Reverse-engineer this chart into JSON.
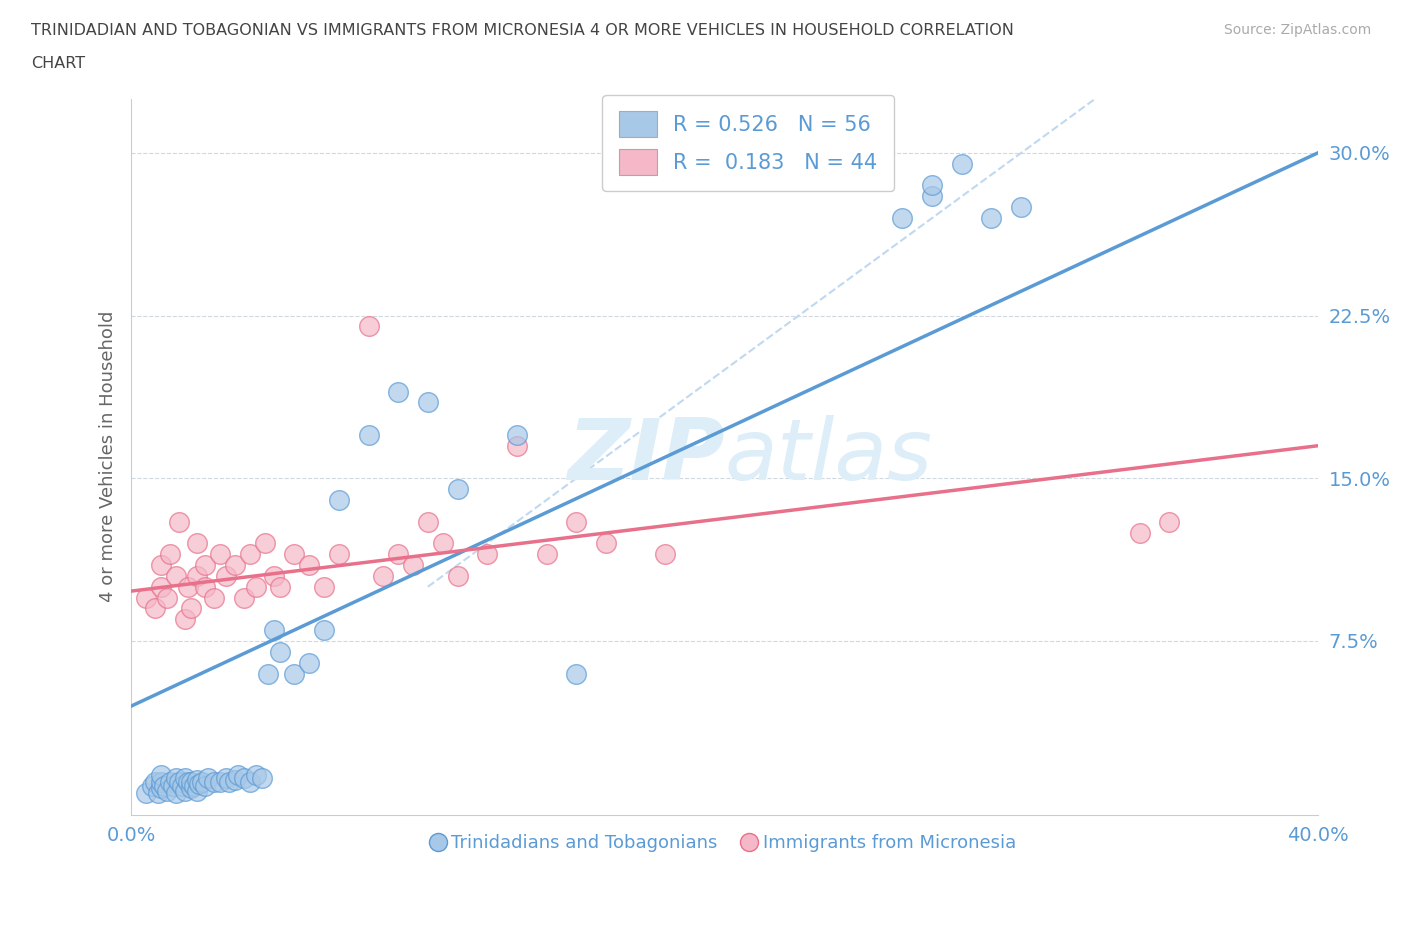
{
  "title_line1": "TRINIDADIAN AND TOBAGONIAN VS IMMIGRANTS FROM MICRONESIA 4 OR MORE VEHICLES IN HOUSEHOLD CORRELATION",
  "title_line2": "CHART",
  "source_text": "Source: ZipAtlas.com",
  "ylabel": "4 or more Vehicles in Household",
  "yticks": [
    "7.5%",
    "15.0%",
    "22.5%",
    "30.0%"
  ],
  "ytick_vals": [
    0.075,
    0.15,
    0.225,
    0.3
  ],
  "xlim": [
    0.0,
    0.4
  ],
  "ylim": [
    -0.005,
    0.325
  ],
  "legend_label1": "R = 0.526   N = 56",
  "legend_label2": "R =  0.183   N = 44",
  "legend_label_bottom1": "Trinidadians and Tobagonians",
  "legend_label_bottom2": "Immigrants from Micronesia",
  "color_blue": "#a8c8e8",
  "color_pink": "#f4b8c8",
  "color_blue_line": "#5b9bd5",
  "color_pink_line": "#e8708a",
  "color_diag": "#c0d8f0",
  "watermark_color": "#ddeef8",
  "blue_x": [
    0.005,
    0.007,
    0.008,
    0.009,
    0.01,
    0.01,
    0.01,
    0.011,
    0.012,
    0.013,
    0.014,
    0.015,
    0.015,
    0.016,
    0.017,
    0.018,
    0.018,
    0.019,
    0.02,
    0.02,
    0.021,
    0.022,
    0.022,
    0.023,
    0.024,
    0.025,
    0.026,
    0.028,
    0.03,
    0.032,
    0.033,
    0.035,
    0.036,
    0.038,
    0.04,
    0.042,
    0.044,
    0.046,
    0.048,
    0.05,
    0.055,
    0.06,
    0.065,
    0.07,
    0.08,
    0.09,
    0.1,
    0.11,
    0.13,
    0.15,
    0.26,
    0.27,
    0.27,
    0.28,
    0.29,
    0.3
  ],
  "blue_y": [
    0.005,
    0.008,
    0.01,
    0.005,
    0.007,
    0.01,
    0.013,
    0.008,
    0.006,
    0.01,
    0.008,
    0.005,
    0.012,
    0.01,
    0.008,
    0.006,
    0.012,
    0.01,
    0.007,
    0.01,
    0.008,
    0.006,
    0.011,
    0.009,
    0.01,
    0.008,
    0.012,
    0.01,
    0.01,
    0.012,
    0.01,
    0.011,
    0.013,
    0.012,
    0.01,
    0.013,
    0.012,
    0.06,
    0.08,
    0.07,
    0.06,
    0.065,
    0.08,
    0.14,
    0.17,
    0.19,
    0.185,
    0.145,
    0.17,
    0.06,
    0.27,
    0.28,
    0.285,
    0.295,
    0.27,
    0.275
  ],
  "pink_x": [
    0.005,
    0.008,
    0.01,
    0.01,
    0.012,
    0.013,
    0.015,
    0.016,
    0.018,
    0.019,
    0.02,
    0.022,
    0.022,
    0.025,
    0.025,
    0.028,
    0.03,
    0.032,
    0.035,
    0.038,
    0.04,
    0.042,
    0.045,
    0.048,
    0.05,
    0.055,
    0.06,
    0.065,
    0.07,
    0.08,
    0.085,
    0.09,
    0.095,
    0.1,
    0.105,
    0.11,
    0.12,
    0.13,
    0.14,
    0.15,
    0.16,
    0.18,
    0.34,
    0.35
  ],
  "pink_y": [
    0.095,
    0.09,
    0.11,
    0.1,
    0.095,
    0.115,
    0.105,
    0.13,
    0.085,
    0.1,
    0.09,
    0.105,
    0.12,
    0.1,
    0.11,
    0.095,
    0.115,
    0.105,
    0.11,
    0.095,
    0.115,
    0.1,
    0.12,
    0.105,
    0.1,
    0.115,
    0.11,
    0.1,
    0.115,
    0.22,
    0.105,
    0.115,
    0.11,
    0.13,
    0.12,
    0.105,
    0.115,
    0.165,
    0.115,
    0.13,
    0.12,
    0.115,
    0.125,
    0.13
  ],
  "blue_line_x": [
    0.0,
    0.4
  ],
  "blue_line_y": [
    0.045,
    0.3
  ],
  "pink_line_x": [
    0.0,
    0.4
  ],
  "pink_line_y": [
    0.098,
    0.165
  ]
}
